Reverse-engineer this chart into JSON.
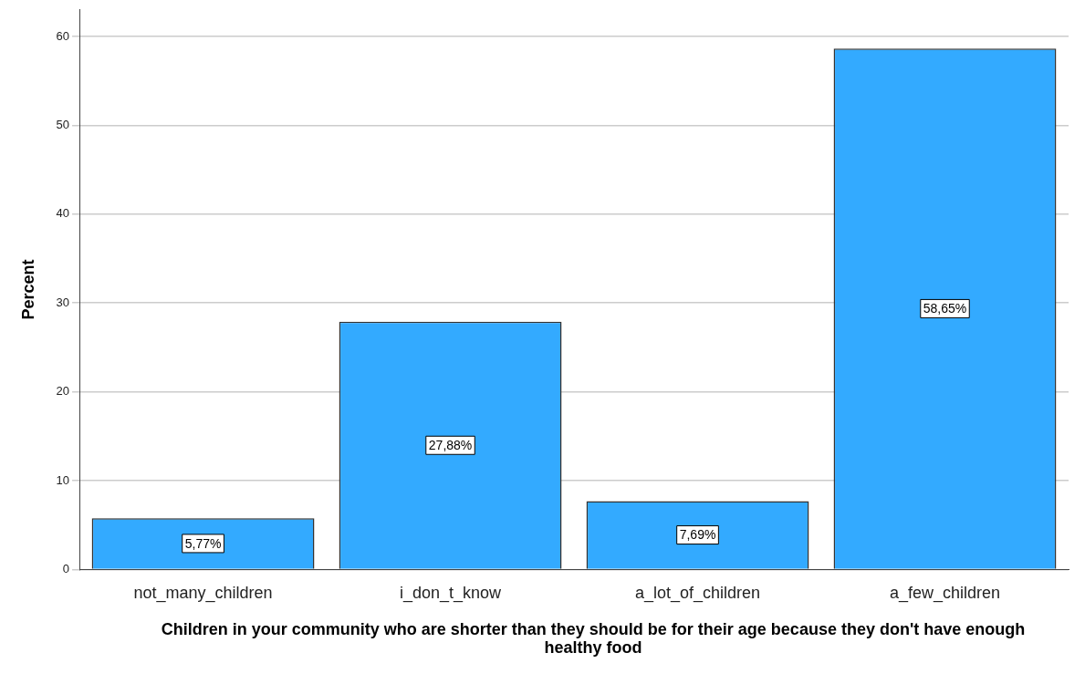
{
  "chart_data": {
    "type": "bar",
    "xlabel": "Children in your community who are shorter than they should be for their age because they don't have enough healthy food",
    "ylabel": "Percent",
    "categories": [
      "not_many_children",
      "i_don_t_know",
      "a_lot_of_children",
      "a_few_children"
    ],
    "values": [
      5.77,
      27.88,
      7.69,
      58.65
    ],
    "value_labels": [
      "5,77%",
      "27,88%",
      "7,69%",
      "58,65%"
    ],
    "color": "#33aaff",
    "ylim": [
      0,
      63
    ],
    "yticks": [
      0,
      10,
      20,
      30,
      40,
      50,
      60
    ],
    "grid": "y",
    "legend": false
  }
}
